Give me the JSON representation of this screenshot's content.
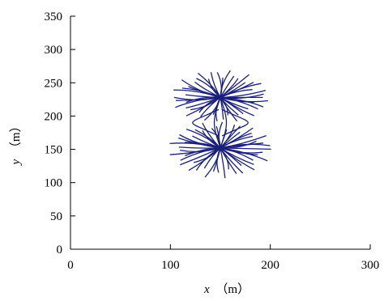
{
  "chart_data": {
    "type": "line",
    "title": "",
    "xlabel": {
      "var": "x",
      "unit": "（m）"
    },
    "ylabel": {
      "var": "y",
      "unit": "（m）"
    },
    "xlim": [
      0,
      300
    ],
    "ylim": [
      0,
      350
    ],
    "xticks": [
      "0",
      "100",
      "200",
      "300"
    ],
    "yticks": [
      "0",
      "50",
      "100",
      "150",
      "200",
      "250",
      "300",
      "350"
    ],
    "grid": false,
    "legend": "none",
    "line_color": "#1a1f7a",
    "clusters": [
      {
        "name": "upper",
        "center": [
          150,
          228
        ],
        "rx": 50,
        "ry_top": 42,
        "ry_bottom": 38,
        "rays": 46
      },
      {
        "name": "lower",
        "center": [
          150,
          152
        ],
        "rx": 52,
        "ry_top": 40,
        "ry_bottom": 46,
        "rays": 48
      }
    ]
  }
}
